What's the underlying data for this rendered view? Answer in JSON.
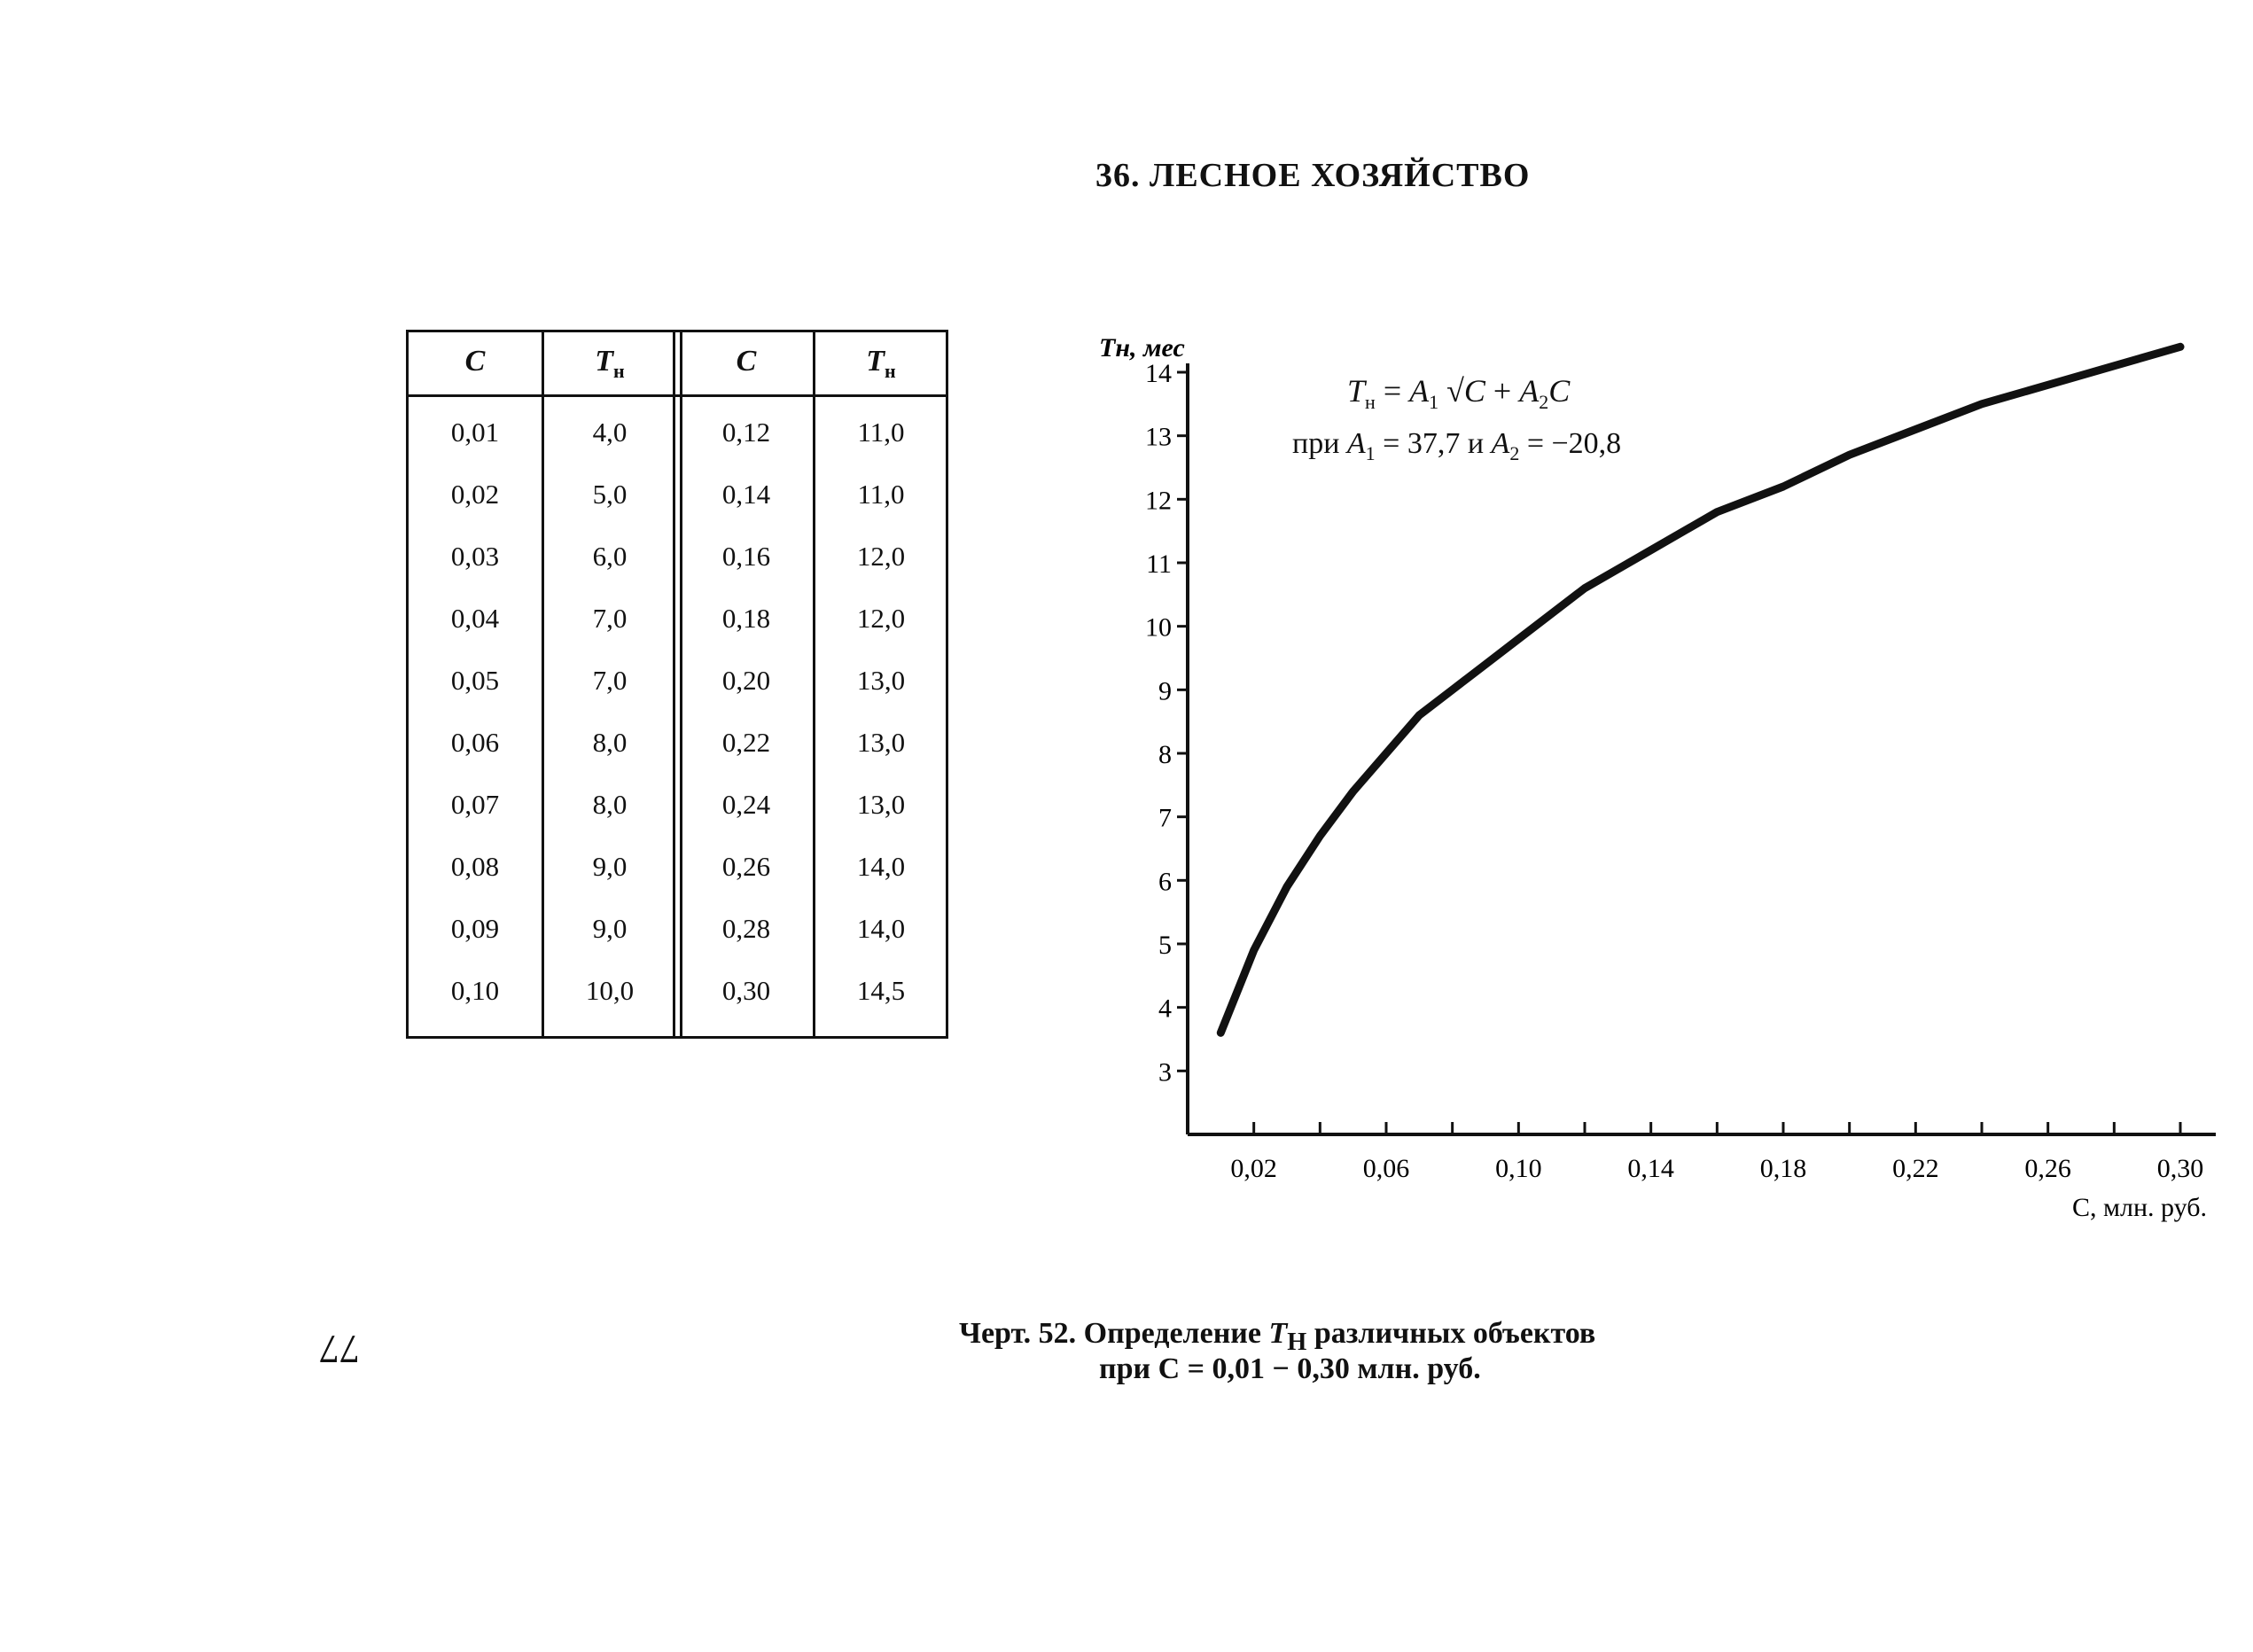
{
  "section_title": "36. ЛЕСНОЕ ХОЗЯЙСТВО",
  "table": {
    "headers": [
      "C",
      "T",
      "C",
      "T"
    ],
    "header_sub": "н",
    "left_rows": [
      [
        "0,01",
        "4,0"
      ],
      [
        "0,02",
        "5,0"
      ],
      [
        "0,03",
        "6,0"
      ],
      [
        "0,04",
        "7,0"
      ],
      [
        "0,05",
        "7,0"
      ],
      [
        "0,06",
        "8,0"
      ],
      [
        "0,07",
        "8,0"
      ],
      [
        "0,08",
        "9,0"
      ],
      [
        "0,09",
        "9,0"
      ],
      [
        "0,10",
        "10,0"
      ]
    ],
    "right_rows": [
      [
        "0,12",
        "11,0"
      ],
      [
        "0,14",
        "11,0"
      ],
      [
        "0,16",
        "12,0"
      ],
      [
        "0,18",
        "12,0"
      ],
      [
        "0,20",
        "13,0"
      ],
      [
        "0,22",
        "13,0"
      ],
      [
        "0,24",
        "13,0"
      ],
      [
        "0,26",
        "14,0"
      ],
      [
        "0,28",
        "14,0"
      ],
      [
        "0,30",
        "14,5"
      ]
    ]
  },
  "formula": {
    "lhs": "T",
    "lhs_sub": "н",
    "eq": " = ",
    "a1": "A",
    "a1_sub": "1",
    "sqrt": "√C",
    "plus": " + ",
    "a2": "A",
    "a2_sub": "2",
    "c": "C",
    "cond_prefix": "при ",
    "cond_a1": "A",
    "cond_a1_sub": "1",
    "cond_mid": " = 37,7 и ",
    "cond_a2": "A",
    "cond_a2_sub": "2",
    "cond_end": " = −20,8"
  },
  "chart_data": {
    "type": "line",
    "ylabel": "Tн, мес",
    "xlabel": "C, млн. руб.",
    "xlim": [
      0,
      0.31
    ],
    "ylim": [
      2,
      14
    ],
    "x_ticks": [
      "0,02",
      "0,06",
      "0,10",
      "0,14",
      "0,18",
      "0,22",
      "0,26",
      "0,30"
    ],
    "x_tick_values": [
      0.02,
      0.06,
      0.1,
      0.14,
      0.18,
      0.22,
      0.26,
      0.3
    ],
    "y_ticks": [
      "3",
      "4",
      "5",
      "6",
      "7",
      "8",
      "9",
      "10",
      "11",
      "12",
      "13",
      "14"
    ],
    "y_tick_values": [
      3,
      4,
      5,
      6,
      7,
      8,
      9,
      10,
      11,
      12,
      13,
      14
    ],
    "series": [
      {
        "x": [
          0.01,
          0.02,
          0.03,
          0.04,
          0.05,
          0.06,
          0.07,
          0.08,
          0.09,
          0.1,
          0.12,
          0.14,
          0.16,
          0.18,
          0.2,
          0.22,
          0.24,
          0.26,
          0.28,
          0.3
        ],
        "values": [
          3.6,
          4.9,
          5.9,
          6.7,
          7.4,
          8.0,
          8.6,
          9.0,
          9.4,
          9.8,
          10.6,
          11.2,
          11.8,
          12.2,
          12.7,
          13.1,
          13.5,
          13.8,
          14.1,
          14.4
        ]
      }
    ]
  },
  "caption": {
    "label": "Черт. 52.",
    "text_1": "Определение ",
    "t": "T",
    "t_sub": "Н",
    "text_2": " различных объектов",
    "line2": "при C = 0,01 − 0,30 млн. руб."
  },
  "page_number": "77"
}
